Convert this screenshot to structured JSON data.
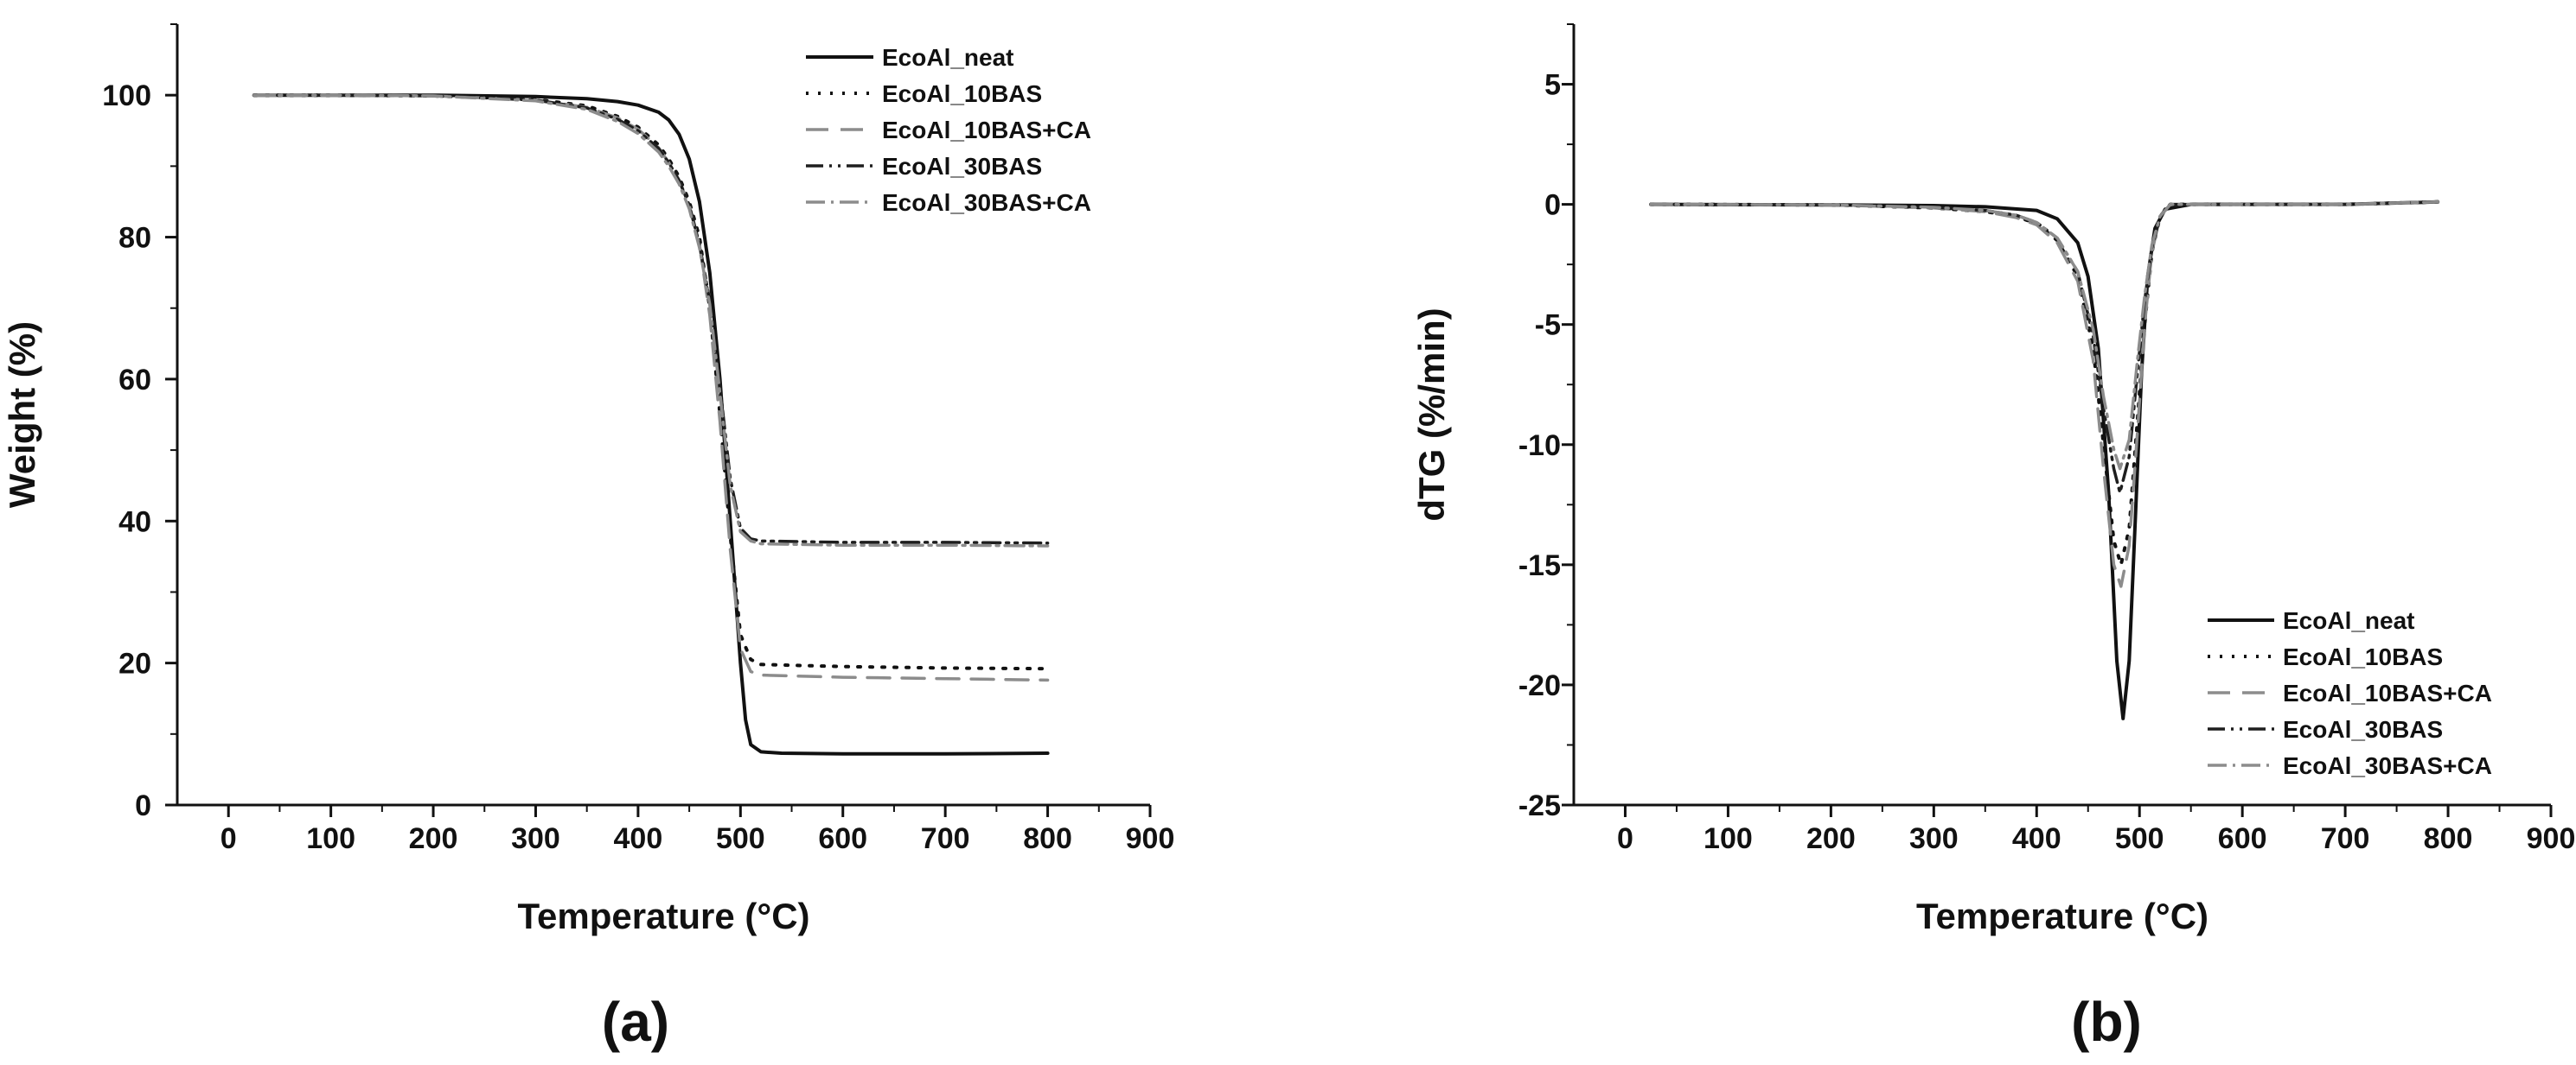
{
  "figure": {
    "panels": [
      {
        "label": "(a)"
      },
      {
        "label": "(b)"
      }
    ]
  },
  "styles": {
    "EcoAl_neat": {
      "color": "#111111",
      "dash": "",
      "width": 4
    },
    "EcoAl_10BAS": {
      "color": "#111111",
      "dash": "3 11",
      "width": 4
    },
    "EcoAl_10BAS+CA": {
      "color": "#8c8c8c",
      "dash": "26 14",
      "width": 3.5
    },
    "EcoAl_30BAS": {
      "color": "#1e1e1e",
      "dash": "20 7 3 7 3 7",
      "width": 3.5
    },
    "EcoAl_30BAS+CA": {
      "color": "#8c8c8c",
      "dash": "22 7 3 7",
      "width": 3.5
    }
  },
  "chart_data": [
    {
      "type": "line",
      "panel": "(a)",
      "title": "",
      "xlabel": "Temperature (°C)",
      "ylabel": "Weight (%)",
      "xlim": [
        -50,
        900
      ],
      "ylim": [
        0,
        110
      ],
      "xticks": [
        0,
        100,
        200,
        300,
        400,
        500,
        600,
        700,
        800,
        900
      ],
      "yticks": [
        0,
        20,
        40,
        60,
        80,
        100
      ],
      "legend_position": "top-right",
      "legend_order": [
        "EcoAl_neat",
        "EcoAl_10BAS",
        "EcoAl_10BAS+CA",
        "EcoAl_30BAS",
        "EcoAl_30BAS+CA"
      ],
      "series": [
        {
          "name": "EcoAl_neat",
          "points": [
            [
              25,
              100
            ],
            [
              100,
              100
            ],
            [
              200,
              100
            ],
            [
              300,
              99.8
            ],
            [
              350,
              99.5
            ],
            [
              380,
              99.1
            ],
            [
              400,
              98.6
            ],
            [
              420,
              97.6
            ],
            [
              430,
              96.5
            ],
            [
              440,
              94.5
            ],
            [
              450,
              91
            ],
            [
              460,
              85
            ],
            [
              470,
              75
            ],
            [
              480,
              60
            ],
            [
              490,
              40
            ],
            [
              500,
              20
            ],
            [
              505,
              12
            ],
            [
              510,
              8.5
            ],
            [
              520,
              7.5
            ],
            [
              540,
              7.3
            ],
            [
              600,
              7.2
            ],
            [
              700,
              7.2
            ],
            [
              800,
              7.3
            ]
          ]
        },
        {
          "name": "EcoAl_10BAS",
          "points": [
            [
              25,
              100
            ],
            [
              100,
              100
            ],
            [
              200,
              99.9
            ],
            [
              300,
              99.4
            ],
            [
              350,
              98.5
            ],
            [
              380,
              97
            ],
            [
              400,
              95.5
            ],
            [
              420,
              93
            ],
            [
              430,
              91
            ],
            [
              440,
              88.5
            ],
            [
              450,
              85
            ],
            [
              460,
              80
            ],
            [
              470,
              70
            ],
            [
              480,
              55
            ],
            [
              490,
              38
            ],
            [
              500,
              24
            ],
            [
              510,
              20.5
            ],
            [
              520,
              19.8
            ],
            [
              600,
              19.5
            ],
            [
              700,
              19.3
            ],
            [
              800,
              19.2
            ]
          ]
        },
        {
          "name": "EcoAl_10BAS+CA",
          "points": [
            [
              25,
              100
            ],
            [
              100,
              100
            ],
            [
              200,
              99.9
            ],
            [
              300,
              99.3
            ],
            [
              350,
              98.3
            ],
            [
              380,
              96.8
            ],
            [
              400,
              95.2
            ],
            [
              420,
              92.6
            ],
            [
              430,
              90.5
            ],
            [
              440,
              88
            ],
            [
              450,
              84.5
            ],
            [
              460,
              79
            ],
            [
              470,
              69
            ],
            [
              480,
              54
            ],
            [
              490,
              36
            ],
            [
              500,
              22
            ],
            [
              510,
              18.8
            ],
            [
              520,
              18.3
            ],
            [
              600,
              18
            ],
            [
              700,
              17.8
            ],
            [
              800,
              17.6
            ]
          ]
        },
        {
          "name": "EcoAl_30BAS",
          "points": [
            [
              25,
              100
            ],
            [
              100,
              100
            ],
            [
              200,
              99.9
            ],
            [
              300,
              99.3
            ],
            [
              350,
              98.2
            ],
            [
              380,
              96.6
            ],
            [
              400,
              95
            ],
            [
              420,
              92.5
            ],
            [
              430,
              90.5
            ],
            [
              440,
              88
            ],
            [
              450,
              84.5
            ],
            [
              460,
              79
            ],
            [
              470,
              71
            ],
            [
              480,
              59
            ],
            [
              490,
              46
            ],
            [
              500,
              39
            ],
            [
              510,
              37.5
            ],
            [
              520,
              37.2
            ],
            [
              600,
              37
            ],
            [
              700,
              37
            ],
            [
              800,
              36.9
            ]
          ]
        },
        {
          "name": "EcoAl_30BAS+CA",
          "points": [
            [
              25,
              100
            ],
            [
              100,
              100
            ],
            [
              200,
              99.9
            ],
            [
              300,
              99.2
            ],
            [
              350,
              98
            ],
            [
              380,
              96.3
            ],
            [
              400,
              94.6
            ],
            [
              420,
              92
            ],
            [
              430,
              90
            ],
            [
              440,
              87.5
            ],
            [
              450,
              84
            ],
            [
              460,
              78.5
            ],
            [
              470,
              70.5
            ],
            [
              480,
              58
            ],
            [
              490,
              45
            ],
            [
              500,
              38.5
            ],
            [
              510,
              37.2
            ],
            [
              520,
              36.8
            ],
            [
              600,
              36.6
            ],
            [
              700,
              36.6
            ],
            [
              800,
              36.5
            ]
          ]
        }
      ]
    },
    {
      "type": "line",
      "panel": "(b)",
      "title": "",
      "xlabel": "Temperature (°C)",
      "ylabel": "dTG (%/min)",
      "xlim": [
        -50,
        900
      ],
      "ylim": [
        -25,
        7.5
      ],
      "xticks": [
        0,
        100,
        200,
        300,
        400,
        500,
        600,
        700,
        800,
        900
      ],
      "yticks": [
        -25,
        -20,
        -15,
        -10,
        -5,
        0,
        5
      ],
      "legend_position": "bottom-right",
      "legend_order": [
        "EcoAl_neat",
        "EcoAl_10BAS",
        "EcoAl_10BAS+CA",
        "EcoAl_30BAS",
        "EcoAl_30BAS+CA"
      ],
      "series": [
        {
          "name": "EcoAl_neat",
          "points": [
            [
              25,
              0
            ],
            [
              200,
              -0.02
            ],
            [
              300,
              -0.05
            ],
            [
              350,
              -0.1
            ],
            [
              400,
              -0.25
            ],
            [
              420,
              -0.6
            ],
            [
              440,
              -1.6
            ],
            [
              450,
              -3
            ],
            [
              460,
              -6
            ],
            [
              470,
              -12
            ],
            [
              478,
              -19
            ],
            [
              484,
              -21.4
            ],
            [
              490,
              -19
            ],
            [
              496,
              -13
            ],
            [
              502,
              -7
            ],
            [
              508,
              -3
            ],
            [
              515,
              -1
            ],
            [
              525,
              -0.2
            ],
            [
              550,
              0
            ],
            [
              700,
              0
            ],
            [
              790,
              0.1
            ]
          ]
        },
        {
          "name": "EcoAl_10BAS",
          "points": [
            [
              25,
              0
            ],
            [
              200,
              -0.02
            ],
            [
              300,
              -0.15
            ],
            [
              350,
              -0.3
            ],
            [
              380,
              -0.5
            ],
            [
              400,
              -0.8
            ],
            [
              420,
              -1.5
            ],
            [
              440,
              -3
            ],
            [
              455,
              -6
            ],
            [
              465,
              -10
            ],
            [
              475,
              -14
            ],
            [
              482,
              -15
            ],
            [
              490,
              -13.5
            ],
            [
              498,
              -9
            ],
            [
              505,
              -5
            ],
            [
              512,
              -2
            ],
            [
              520,
              -0.5
            ],
            [
              530,
              0
            ],
            [
              700,
              0
            ],
            [
              790,
              0.1
            ]
          ]
        },
        {
          "name": "EcoAl_10BAS+CA",
          "points": [
            [
              25,
              0
            ],
            [
              200,
              -0.02
            ],
            [
              300,
              -0.15
            ],
            [
              350,
              -0.3
            ],
            [
              380,
              -0.55
            ],
            [
              400,
              -0.85
            ],
            [
              420,
              -1.6
            ],
            [
              440,
              -3.2
            ],
            [
              455,
              -6.5
            ],
            [
              465,
              -11
            ],
            [
              475,
              -15
            ],
            [
              482,
              -15.9
            ],
            [
              490,
              -14.2
            ],
            [
              498,
              -9.5
            ],
            [
              505,
              -5
            ],
            [
              512,
              -2
            ],
            [
              520,
              -0.5
            ],
            [
              530,
              0
            ],
            [
              700,
              0
            ],
            [
              790,
              0.1
            ]
          ]
        },
        {
          "name": "EcoAl_30BAS",
          "points": [
            [
              25,
              0
            ],
            [
              200,
              -0.02
            ],
            [
              300,
              -0.12
            ],
            [
              350,
              -0.25
            ],
            [
              380,
              -0.45
            ],
            [
              400,
              -0.75
            ],
            [
              420,
              -1.4
            ],
            [
              440,
              -2.8
            ],
            [
              455,
              -5.5
            ],
            [
              465,
              -8.5
            ],
            [
              475,
              -11
            ],
            [
              481,
              -12
            ],
            [
              490,
              -10.5
            ],
            [
              498,
              -7
            ],
            [
              505,
              -4
            ],
            [
              512,
              -1.8
            ],
            [
              520,
              -0.5
            ],
            [
              530,
              0
            ],
            [
              700,
              0
            ],
            [
              790,
              0.1
            ]
          ]
        },
        {
          "name": "EcoAl_30BAS+CA",
          "points": [
            [
              25,
              0
            ],
            [
              200,
              -0.02
            ],
            [
              300,
              -0.12
            ],
            [
              350,
              -0.25
            ],
            [
              380,
              -0.45
            ],
            [
              400,
              -0.75
            ],
            [
              420,
              -1.4
            ],
            [
              440,
              -2.8
            ],
            [
              455,
              -5.2
            ],
            [
              465,
              -8
            ],
            [
              475,
              -10.2
            ],
            [
              481,
              -11
            ],
            [
              490,
              -9.8
            ],
            [
              498,
              -6.5
            ],
            [
              505,
              -3.8
            ],
            [
              512,
              -1.7
            ],
            [
              520,
              -0.5
            ],
            [
              530,
              0
            ],
            [
              700,
              0
            ],
            [
              790,
              0.1
            ]
          ]
        }
      ]
    }
  ]
}
